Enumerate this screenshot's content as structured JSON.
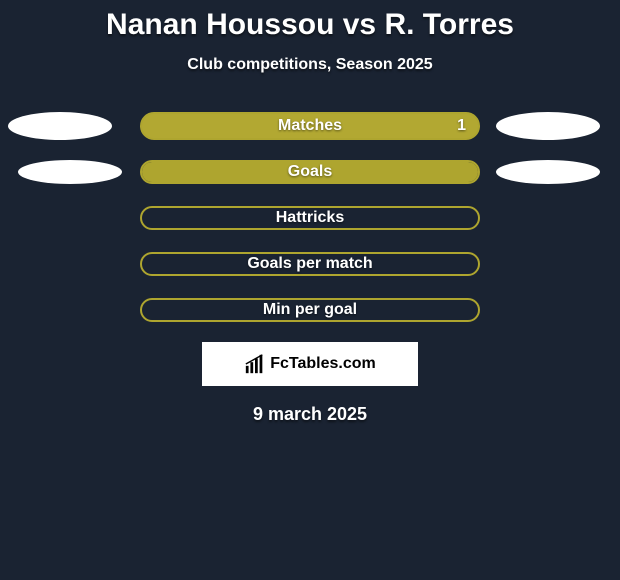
{
  "background_color": "#1a2332",
  "header": {
    "player1": "Nanan Houssou",
    "vs": "vs",
    "player2": "R. Torres",
    "subtitle": "Club competitions, Season 2025",
    "title_color": "#ffffff",
    "title_fontsize": 30,
    "subtitle_fontsize": 16
  },
  "rows": [
    {
      "label": "Matches",
      "left_ellipse": true,
      "left_ellipse_shrink": false,
      "right_ellipse": true,
      "right_ellipse_shrink": false,
      "bar_color": "#aea52f",
      "bar_border": "#aea52f",
      "thin": false,
      "fill_pct": 100,
      "fill_color": "#b2a832",
      "right_value": "1"
    },
    {
      "label": "Goals",
      "left_ellipse": true,
      "left_ellipse_shrink": true,
      "right_ellipse": true,
      "right_ellipse_shrink": true,
      "bar_color": "transparent",
      "bar_border": "#aea52f",
      "thin": true,
      "fill_pct": 100,
      "fill_color": "#aea52f",
      "right_value": ""
    },
    {
      "label": "Hattricks",
      "left_ellipse": false,
      "right_ellipse": false,
      "bar_color": "transparent",
      "bar_border": "#aea52f",
      "thin": true,
      "fill_pct": 0,
      "fill_color": "transparent",
      "right_value": ""
    },
    {
      "label": "Goals per match",
      "left_ellipse": false,
      "right_ellipse": false,
      "bar_color": "transparent",
      "bar_border": "#aea52f",
      "thin": true,
      "fill_pct": 0,
      "fill_color": "transparent",
      "right_value": ""
    },
    {
      "label": "Min per goal",
      "left_ellipse": false,
      "right_ellipse": false,
      "bar_color": "transparent",
      "bar_border": "#aea52f",
      "thin": true,
      "fill_pct": 0,
      "fill_color": "transparent",
      "right_value": ""
    }
  ],
  "logo": {
    "text": "FcTables.com",
    "box_bg": "#ffffff",
    "text_color": "#000000"
  },
  "date": "9 march 2025",
  "ellipse_color": "#ffffff",
  "bar_label_color": "#ffffff",
  "bar_label_fontsize": 16
}
